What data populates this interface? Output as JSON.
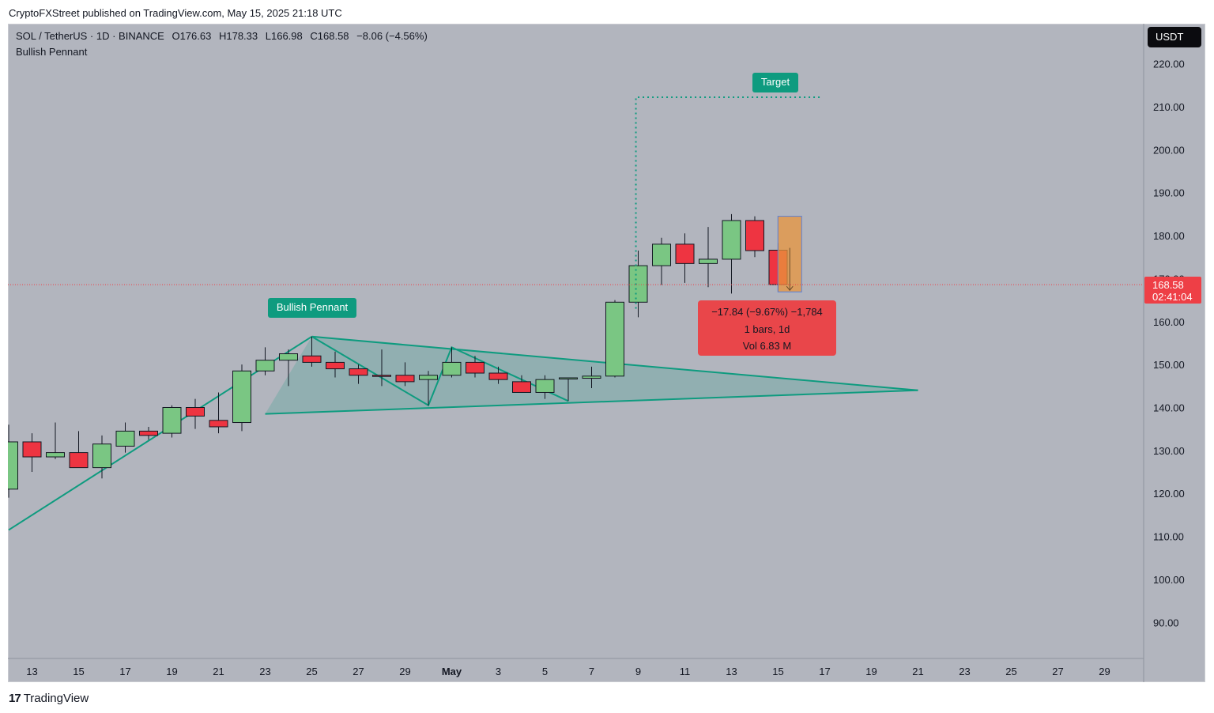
{
  "publisher_line": "CryptoFXStreet published on TradingView.com, May 15, 2025 21:18 UTC",
  "header": {
    "symbol": "SOL / TetherUS · 1D · BINANCE",
    "open": "O176.63",
    "high": "H178.33",
    "low": "L166.98",
    "close": "C168.58",
    "change": "−8.06 (−4.56%)",
    "indicator": "Bullish Pennant"
  },
  "currency_button": "USDT",
  "last_price": {
    "value": "168.58",
    "countdown": "02:41:04",
    "price": 168.58
  },
  "measure_callout": {
    "line1": "−17.84 (−9.67%) −1,784",
    "line2": "1 bars, 1d",
    "line3": "Vol 6.83 M"
  },
  "annotations": {
    "pennant_label": "Bullish Pennant",
    "target_label": "Target"
  },
  "footer": {
    "brand": "TradingView",
    "logo_glyph": "17"
  },
  "colors": {
    "background": "#b2b5be",
    "up": "#7ac683",
    "down": "#ee3441",
    "pattern": "#0e9b7f",
    "last_price": "#ee3f46"
  },
  "chart_data": {
    "type": "candlestick",
    "title": "SOL / TetherUS · 1D · BINANCE",
    "y_ticks": [
      220,
      210,
      200,
      190,
      180,
      170,
      160,
      150,
      140,
      130,
      120,
      110,
      100,
      90
    ],
    "y_tick_labels": [
      "220.00",
      "210.00",
      "200.00",
      "190.00",
      "180.00",
      "170.00",
      "160.00",
      "150.00",
      "140.00",
      "130.00",
      "120.00",
      "110.00",
      "100.00",
      "90.00"
    ],
    "ylim": [
      81.6,
      229.3
    ],
    "x_tick_labels": [
      "13",
      "15",
      "17",
      "19",
      "21",
      "23",
      "25",
      "27",
      "29",
      "May",
      "3",
      "5",
      "7",
      "9",
      "11",
      "13",
      "15",
      "17",
      "19",
      "21",
      "23",
      "25",
      "27",
      "29"
    ],
    "x_tick_days": [
      0,
      2,
      4,
      6,
      8,
      10,
      12,
      14,
      16,
      18,
      20,
      22,
      24,
      26,
      28,
      30,
      32,
      34,
      36,
      38,
      40,
      42,
      44,
      46
    ],
    "day_of_first_tick": "Apr 13",
    "candles": [
      {
        "d": -1,
        "o": 121,
        "h": 136,
        "l": 119,
        "c": 132
      },
      {
        "d": 0,
        "o": 132,
        "h": 134,
        "l": 125,
        "c": 128.5
      },
      {
        "d": 1,
        "o": 128.5,
        "h": 136.5,
        "l": 128,
        "c": 129.5
      },
      {
        "d": 2,
        "o": 129.5,
        "h": 134.5,
        "l": 126,
        "c": 126
      },
      {
        "d": 3,
        "o": 126,
        "h": 133.5,
        "l": 123.5,
        "c": 131.5
      },
      {
        "d": 4,
        "o": 131,
        "h": 136.5,
        "l": 129.5,
        "c": 134.5
      },
      {
        "d": 5,
        "o": 134.5,
        "h": 135.5,
        "l": 132.5,
        "c": 133.5
      },
      {
        "d": 6,
        "o": 134,
        "h": 140.5,
        "l": 133,
        "c": 140
      },
      {
        "d": 7,
        "o": 140,
        "h": 142,
        "l": 135,
        "c": 138
      },
      {
        "d": 8,
        "o": 137,
        "h": 143.5,
        "l": 134,
        "c": 135.5
      },
      {
        "d": 9,
        "o": 136.5,
        "h": 150,
        "l": 134.5,
        "c": 148.5
      },
      {
        "d": 10,
        "o": 148.5,
        "h": 154,
        "l": 147.5,
        "c": 151
      },
      {
        "d": 11,
        "o": 151,
        "h": 153.5,
        "l": 145,
        "c": 152.5
      },
      {
        "d": 12,
        "o": 152,
        "h": 156.5,
        "l": 149.5,
        "c": 150.5
      },
      {
        "d": 13,
        "o": 150.5,
        "h": 153,
        "l": 147,
        "c": 149
      },
      {
        "d": 14,
        "o": 149,
        "h": 150,
        "l": 145.5,
        "c": 147.5
      },
      {
        "d": 15,
        "o": 147.5,
        "h": 153.5,
        "l": 145,
        "c": 147.3
      },
      {
        "d": 16,
        "o": 147.5,
        "h": 150.5,
        "l": 145,
        "c": 146
      },
      {
        "d": 17,
        "o": 146.5,
        "h": 148.5,
        "l": 140.5,
        "c": 147.5
      },
      {
        "d": 18,
        "o": 147.5,
        "h": 154,
        "l": 147,
        "c": 150.5
      },
      {
        "d": 19,
        "o": 150.5,
        "h": 152,
        "l": 147,
        "c": 148
      },
      {
        "d": 20,
        "o": 148,
        "h": 149.5,
        "l": 145.5,
        "c": 146.5
      },
      {
        "d": 21,
        "o": 146,
        "h": 147.5,
        "l": 143.5,
        "c": 143.5
      },
      {
        "d": 22,
        "o": 143.5,
        "h": 147.5,
        "l": 142,
        "c": 146.5
      },
      {
        "d": 23,
        "o": 146.8,
        "h": 147,
        "l": 141.5,
        "c": 146.9
      },
      {
        "d": 24,
        "o": 146.8,
        "h": 149.5,
        "l": 144.5,
        "c": 147.3
      },
      {
        "d": 25,
        "o": 147.3,
        "h": 165,
        "l": 147,
        "c": 164.5
      },
      {
        "d": 26,
        "o": 164.5,
        "h": 176.5,
        "l": 161,
        "c": 173
      },
      {
        "d": 27,
        "o": 173,
        "h": 179.5,
        "l": 168.5,
        "c": 178
      },
      {
        "d": 28,
        "o": 178,
        "h": 180.5,
        "l": 169,
        "c": 173.5
      },
      {
        "d": 29,
        "o": 173.5,
        "h": 182,
        "l": 168,
        "c": 174.5
      },
      {
        "d": 30,
        "o": 174.5,
        "h": 185,
        "l": 166.5,
        "c": 183.5
      },
      {
        "d": 31,
        "o": 183.5,
        "h": 184.5,
        "l": 175,
        "c": 176.5
      },
      {
        "d": 32,
        "o": 176.6,
        "h": 178.3,
        "l": 167,
        "c": 168.6
      }
    ],
    "pennant": {
      "pole_start": {
        "d": -1,
        "v": 111.5
      },
      "apex": {
        "d": 12,
        "v": 156.5
      },
      "upper_end": {
        "d": 38,
        "v": 144
      },
      "lower_start": {
        "d": 10,
        "v": 138.5
      },
      "zigzag": [
        {
          "d": 12,
          "v": 156.5
        },
        {
          "d": 17,
          "v": 140.5
        },
        {
          "d": 18,
          "v": 154
        },
        {
          "d": 23,
          "v": 141.5
        }
      ]
    },
    "target": {
      "from_d": 25.9,
      "from_v": 163,
      "level": 212.2,
      "to_d": 33.9
    },
    "measure_box": {
      "d": 32.5,
      "top": 184.5,
      "bottom": 166.9
    },
    "last_price_line": 168.58
  }
}
